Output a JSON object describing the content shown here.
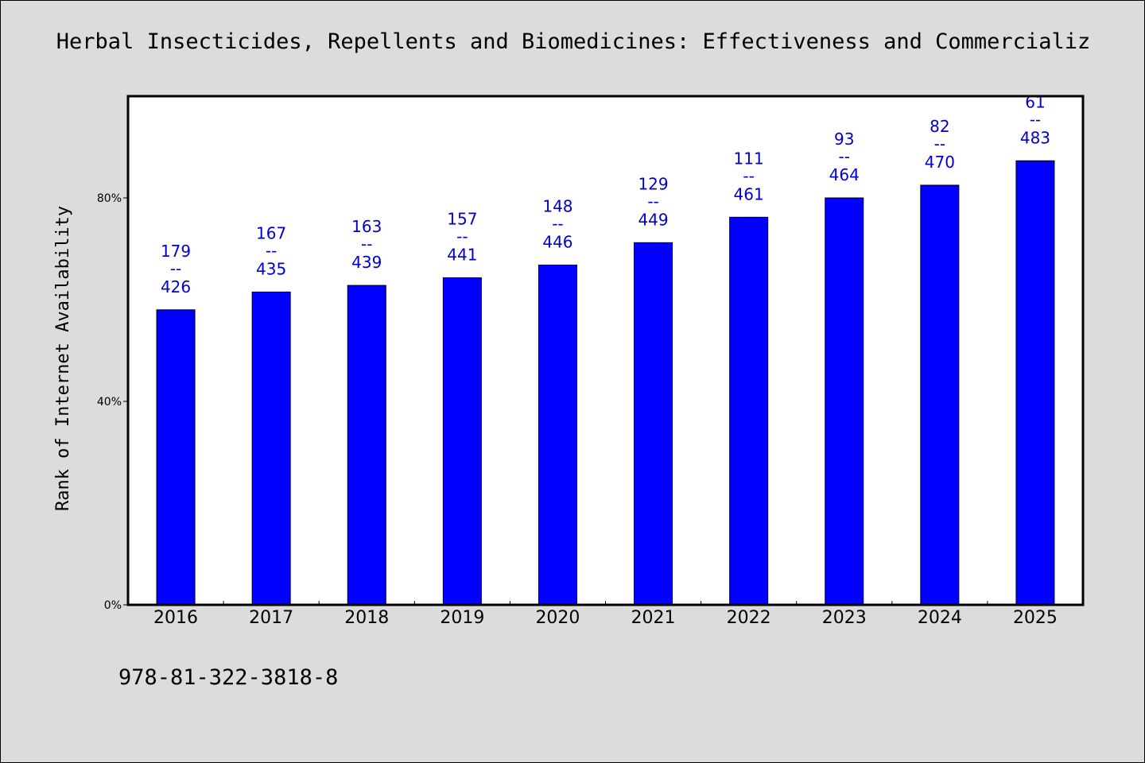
{
  "title": "Herbal Insecticides, Repellents and Biomedicines: Effectiveness and Commercializ",
  "isbn": "978-81-322-3818-8",
  "colors": {
    "bar": "#0000ff",
    "label": "#0000cc",
    "plot_bg": "#ffffff",
    "page_bg": "#dcdcdc"
  },
  "chart_data": {
    "type": "bar",
    "title": "Herbal Insecticides, Repellents and Biomedicines: Effectiveness and Commercializ",
    "xlabel": "",
    "ylabel": "Rank of Internet Availability",
    "ylim": [
      0,
      100
    ],
    "yticks": [
      0,
      40,
      80
    ],
    "ytick_labels": [
      "0%",
      "40%",
      "80%"
    ],
    "categories": [
      "2016",
      "2017",
      "2018",
      "2019",
      "2020",
      "2021",
      "2022",
      "2023",
      "2024",
      "2025"
    ],
    "values": [
      58,
      61.5,
      62.8,
      64.3,
      66.8,
      71.2,
      76.2,
      80,
      82.5,
      87.3
    ],
    "bar_labels": [
      {
        "top": "179",
        "sep": "--",
        "bottom": "426"
      },
      {
        "top": "167",
        "sep": "--",
        "bottom": "435"
      },
      {
        "top": "163",
        "sep": "--",
        "bottom": "439"
      },
      {
        "top": "157",
        "sep": "--",
        "bottom": "441"
      },
      {
        "top": "148",
        "sep": "--",
        "bottom": "446"
      },
      {
        "top": "129",
        "sep": "--",
        "bottom": "449"
      },
      {
        "top": "111",
        "sep": "--",
        "bottom": "461"
      },
      {
        "top": "93",
        "sep": "--",
        "bottom": "464"
      },
      {
        "top": "82",
        "sep": "--",
        "bottom": "470"
      },
      {
        "top": "61",
        "sep": "--",
        "bottom": "483"
      }
    ],
    "grid": false,
    "legend": "none"
  }
}
